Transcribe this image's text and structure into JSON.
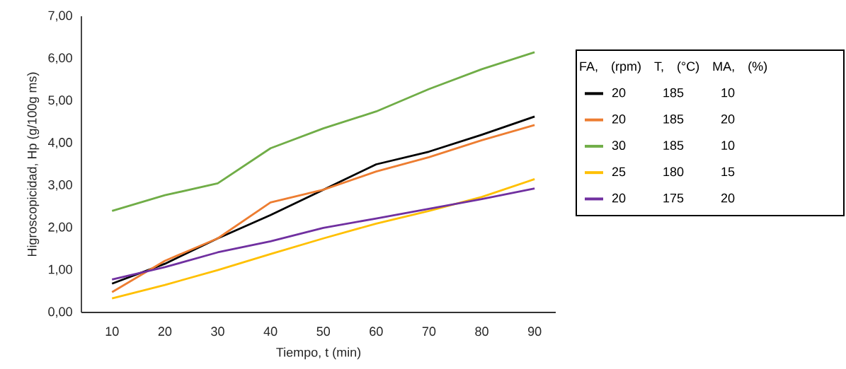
{
  "chart_data": {
    "type": "line",
    "xlabel": "Tiempo, t (min)",
    "ylabel": "Higroscopicidad, Hp (g/100g ms)",
    "categories": [
      "10",
      "20",
      "30",
      "40",
      "50",
      "60",
      "70",
      "80",
      "90"
    ],
    "ylim": [
      0,
      7
    ],
    "yticks": [
      {
        "value": 0,
        "label": "0,00"
      },
      {
        "value": 1,
        "label": "1,00"
      },
      {
        "value": 2,
        "label": "2,00"
      },
      {
        "value": 3,
        "label": "3,00"
      },
      {
        "value": 4,
        "label": "4,00"
      },
      {
        "value": 5,
        "label": "5,00"
      },
      {
        "value": 6,
        "label": "6,00"
      },
      {
        "value": 7,
        "label": "7,00"
      }
    ],
    "legend": "right",
    "legend_title": "FA, (rpm) T, (°C) MA, (%)",
    "series": [
      {
        "name": "20 185 10",
        "color": "#000000",
        "values": [
          0.68,
          1.15,
          1.75,
          2.3,
          2.9,
          3.5,
          3.8,
          4.2,
          4.63
        ]
      },
      {
        "name": "20 185 20",
        "color": "#ed7d31",
        "values": [
          0.48,
          1.22,
          1.75,
          2.6,
          2.9,
          3.33,
          3.67,
          4.07,
          4.43
        ]
      },
      {
        "name": "30 185 10",
        "color": "#70ad47",
        "values": [
          2.4,
          2.77,
          3.05,
          3.88,
          4.35,
          4.75,
          5.28,
          5.75,
          6.15
        ]
      },
      {
        "name": "25 180 15",
        "color": "#ffc000",
        "values": [
          0.33,
          0.65,
          1.0,
          1.38,
          1.75,
          2.1,
          2.4,
          2.73,
          3.15
        ]
      },
      {
        "name": "20 175 20",
        "color": "#7030a0",
        "values": [
          0.78,
          1.07,
          1.42,
          1.68,
          2.0,
          2.22,
          2.45,
          2.68,
          2.93
        ]
      }
    ]
  }
}
